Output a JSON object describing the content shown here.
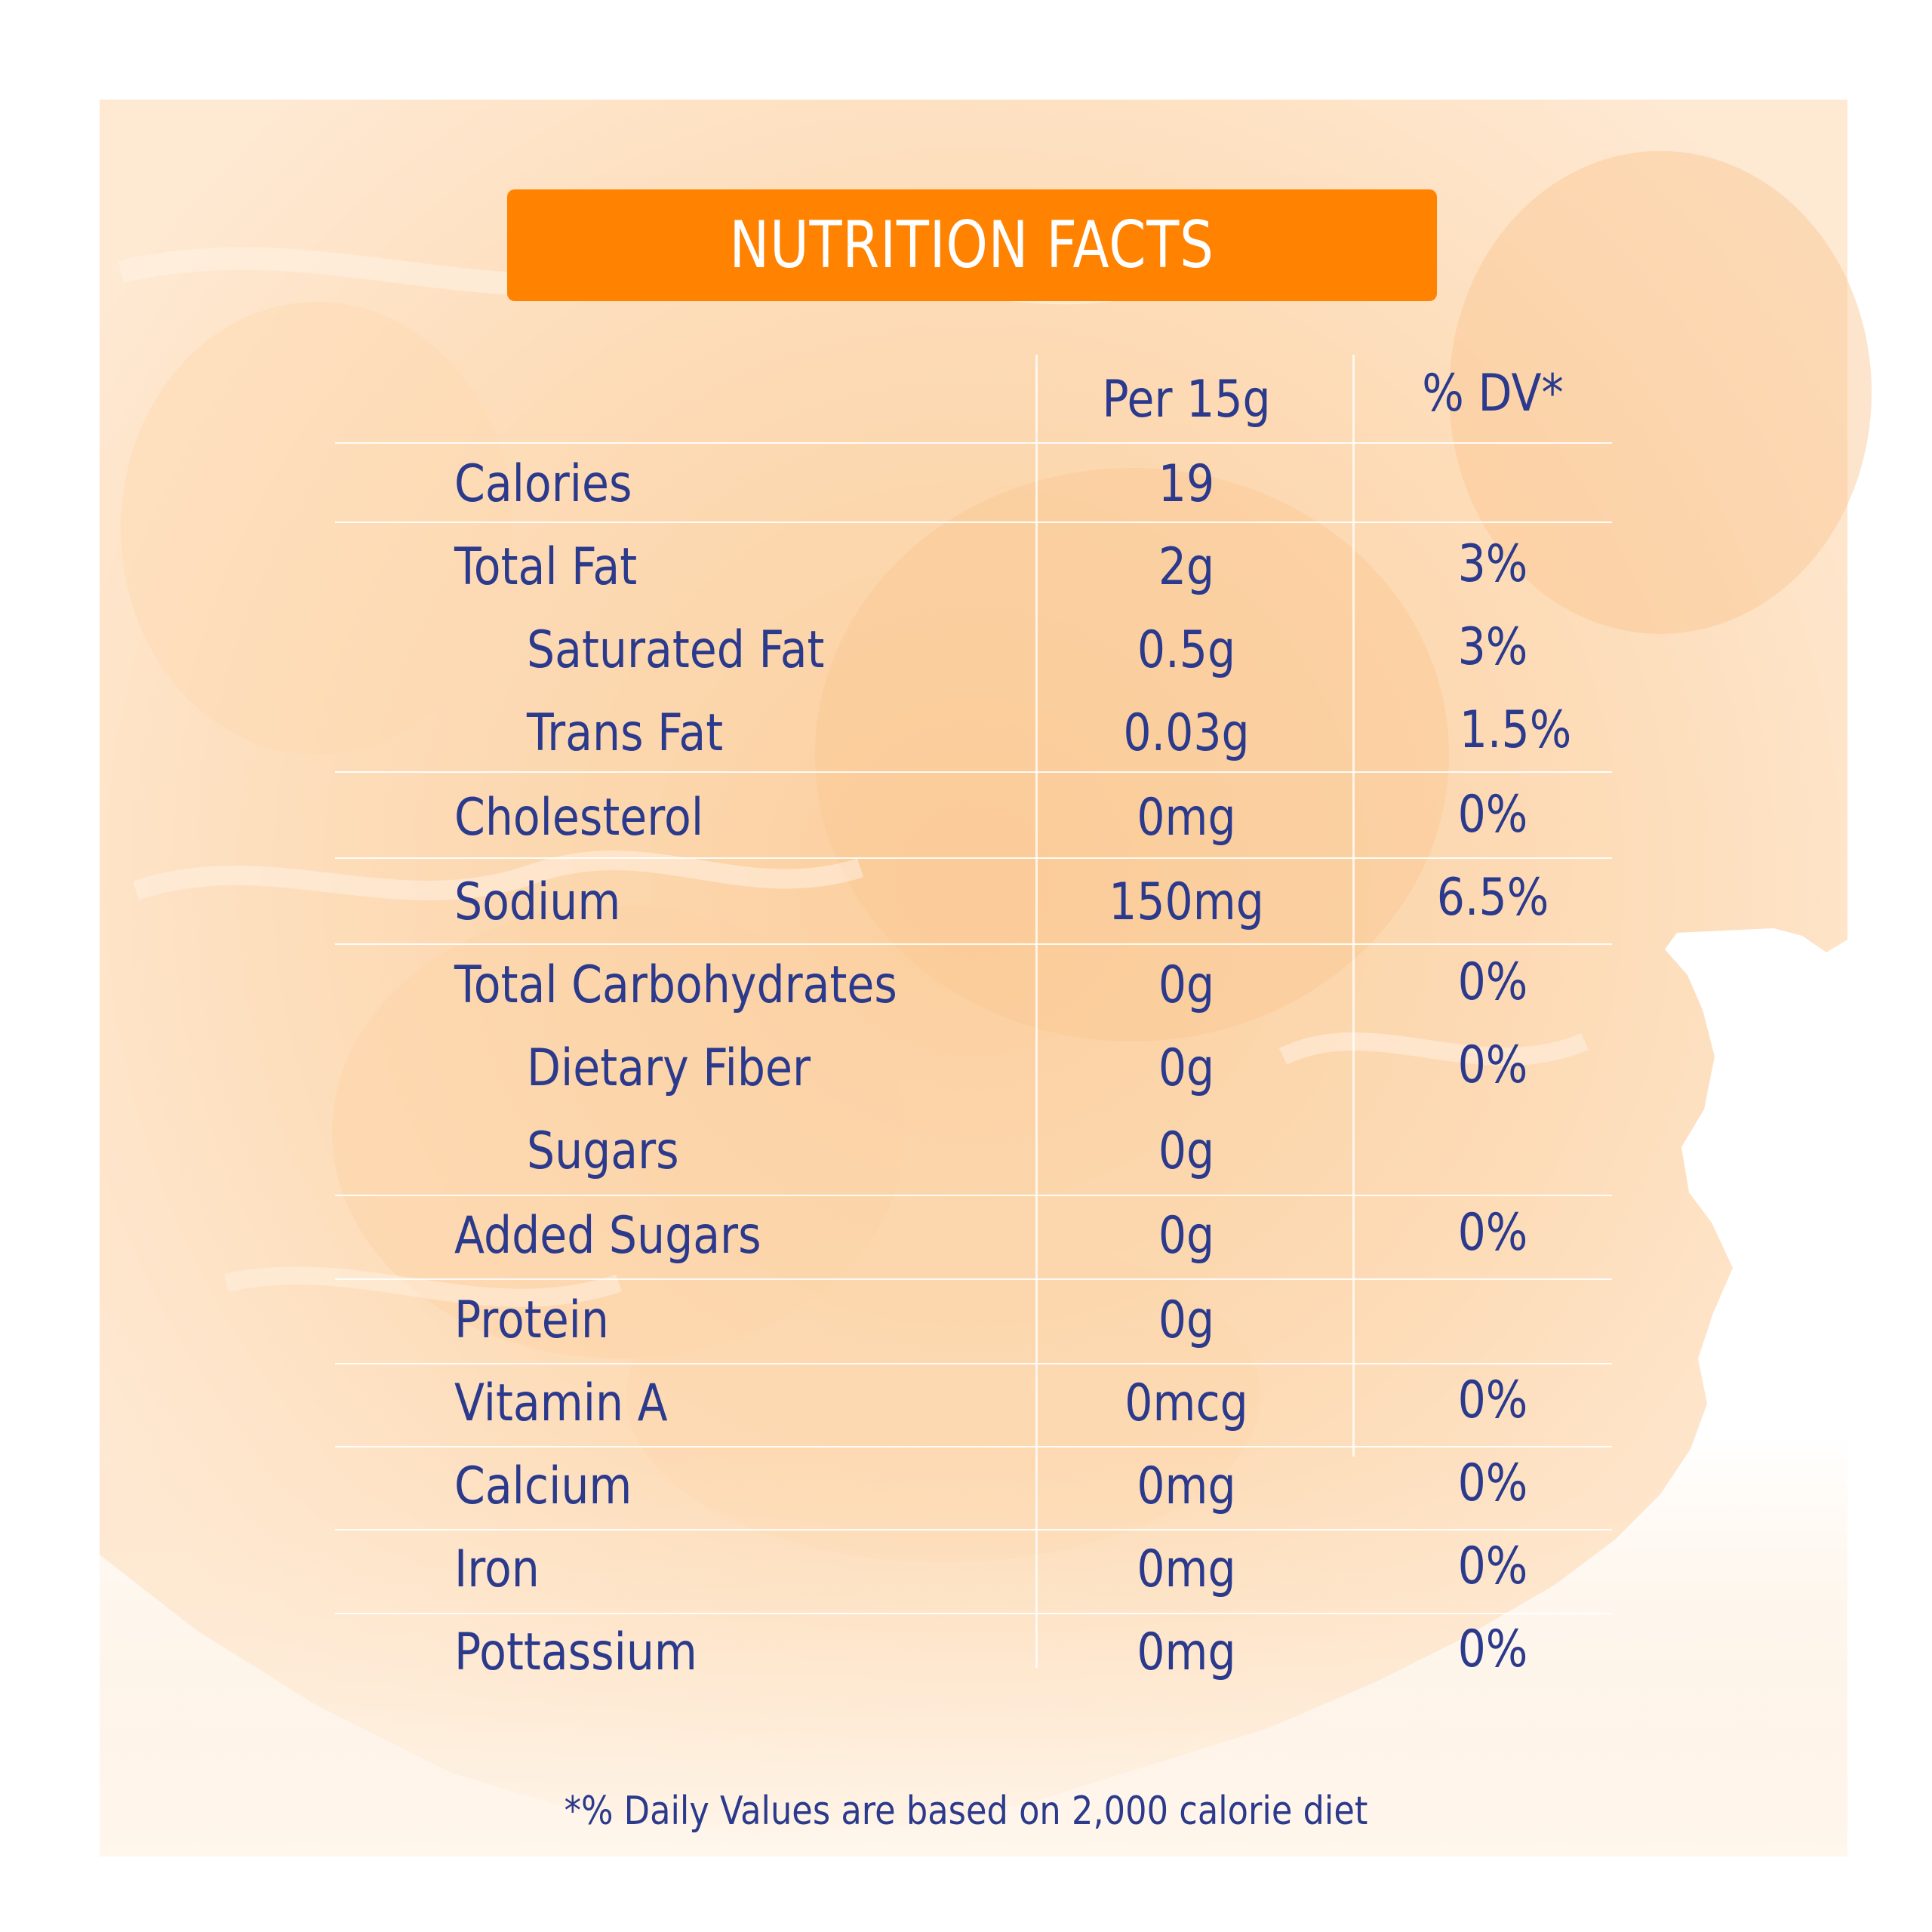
{
  "title": "NUTRITION FACTS",
  "columns": {
    "serving": "Per 15g",
    "dv": "% DV*"
  },
  "rows": [
    {
      "name": "Calories",
      "amount": "19",
      "dv": "",
      "indent": false
    },
    {
      "name": "Total Fat",
      "amount": "2g",
      "dv": "3%",
      "indent": false
    },
    {
      "name": "Saturated Fat",
      "amount": "0.5g",
      "dv": "3%",
      "indent": true
    },
    {
      "name": "Trans Fat",
      "amount": "0.03g",
      "dv": "1.5%",
      "indent": true
    },
    {
      "name": "Cholesterol",
      "amount": "0mg",
      "dv": "0%",
      "indent": false
    },
    {
      "name": "Sodium",
      "amount": "150mg",
      "dv": "6.5%",
      "indent": false
    },
    {
      "name": "Total Carbohydrates",
      "amount": "0g",
      "dv": "0%",
      "indent": false
    },
    {
      "name": "Dietary Fiber",
      "amount": "0g",
      "dv": "0%",
      "indent": true
    },
    {
      "name": "Sugars",
      "amount": "0g",
      "dv": "",
      "indent": true
    },
    {
      "name": "Added Sugars",
      "amount": "0g",
      "dv": "0%",
      "indent": false
    },
    {
      "name": "Protein",
      "amount": "0g",
      "dv": "",
      "indent": false
    },
    {
      "name": "Vitamin A",
      "amount": "0mcg",
      "dv": "0%",
      "indent": false
    },
    {
      "name": "Calcium",
      "amount": "0mg",
      "dv": "0%",
      "indent": false
    },
    {
      "name": "Iron",
      "amount": "0mg",
      "dv": "0%",
      "indent": false
    },
    {
      "name": "Pottassium",
      "amount": "0mg",
      "dv": "0%",
      "indent": false
    }
  ],
  "footnote": "*% Daily Values are based on 2,000 calorie diet",
  "colors": {
    "banner": "#ff8200",
    "text": "#2b3a8c",
    "wash_light": "#fde3c4",
    "wash_dark": "#fbcf9e"
  }
}
